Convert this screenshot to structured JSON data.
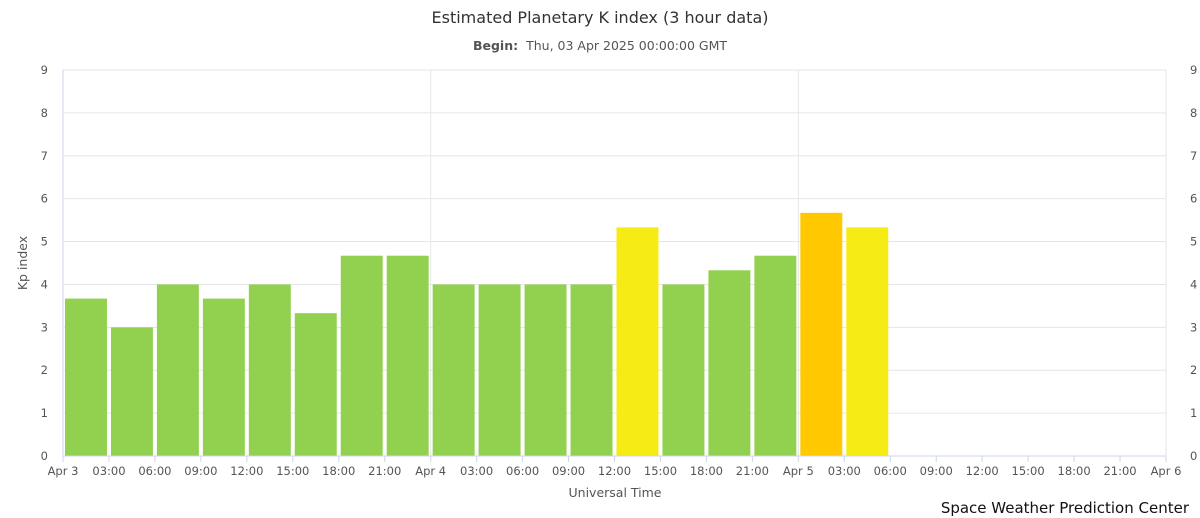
{
  "chart_data": {
    "type": "bar",
    "title": "Estimated Planetary K index (3 hour data)",
    "subtitle": {
      "label": "Begin:",
      "value": "Thu, 03 Apr 2025 00:00:00 GMT"
    },
    "xlabel": "Universal Time",
    "ylabel": "Kp index",
    "ylim": [
      0,
      9
    ],
    "yticks": [
      "0",
      "1",
      "2",
      "3",
      "4",
      "5",
      "6",
      "7",
      "8",
      "9"
    ],
    "xticks": [
      "Apr 3",
      "03:00",
      "06:00",
      "09:00",
      "12:00",
      "15:00",
      "18:00",
      "21:00",
      "Apr 4",
      "03:00",
      "06:00",
      "09:00",
      "12:00",
      "15:00",
      "18:00",
      "21:00",
      "Apr 5",
      "03:00",
      "06:00",
      "09:00",
      "12:00",
      "15:00",
      "18:00",
      "21:00",
      "Apr 6"
    ],
    "x_range_hours": [
      0,
      72
    ],
    "bar_hours": 3,
    "values": [
      3.67,
      3.0,
      4.0,
      3.67,
      4.0,
      3.33,
      4.67,
      4.67,
      4.0,
      4.0,
      4.0,
      4.0,
      5.33,
      4.0,
      4.33,
      4.67,
      5.67,
      5.33
    ],
    "color_rules": [
      {
        "below": 5,
        "color": "#92d050"
      },
      {
        "below": 5.5,
        "color": "#f6eb14"
      },
      {
        "below": 6.5,
        "color": "#ffc800"
      },
      {
        "below": 10,
        "color": "#ff9600"
      }
    ],
    "grid": true,
    "dual_y_axis": true,
    "colors": {
      "grid": "#e6e6e6",
      "axis_left": "#ccd6eb",
      "axis_bottom": "#ccd6eb"
    }
  },
  "credit": "Space Weather Prediction Center"
}
